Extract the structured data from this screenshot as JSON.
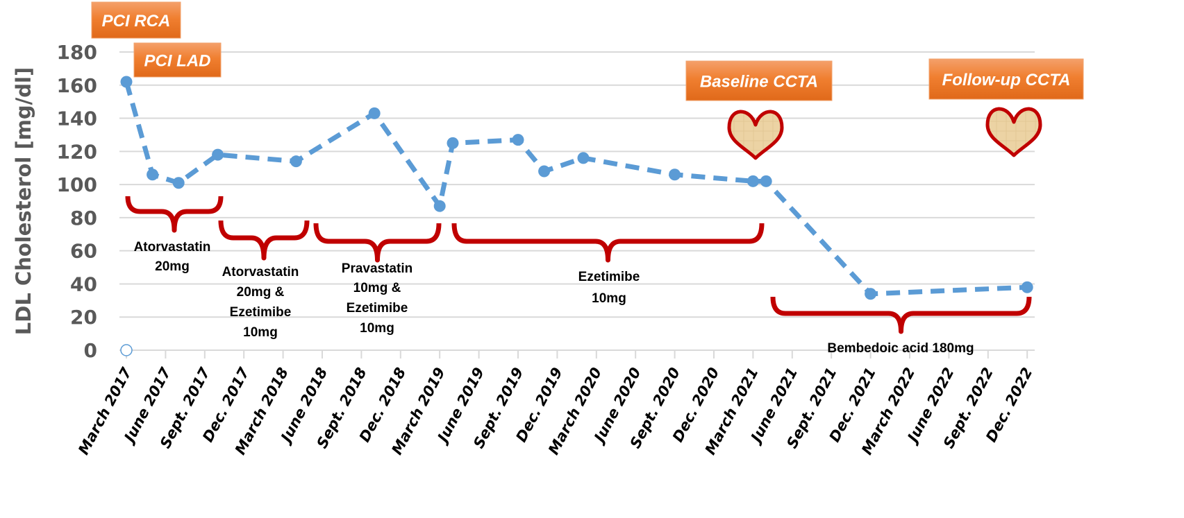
{
  "chart_data": {
    "type": "line",
    "title": "",
    "xlabel": "",
    "ylabel": "LDL Cholesterol [mg/dl]",
    "ylim": [
      0,
      180
    ],
    "yticks": [
      0,
      20,
      40,
      60,
      80,
      100,
      120,
      140,
      160,
      180
    ],
    "xtick_labels": [
      "March 2017",
      "June 2017",
      "Sept. 2017",
      "Dec. 2017",
      "March 2018",
      "June 2018",
      "Sept. 2018",
      "Dec. 2018",
      "March 2019",
      "June 2019",
      "Sept. 2019",
      "Dec. 2019",
      "March 2020",
      "June 2020",
      "Sept. 2020",
      "Dec. 2020",
      "March  2021",
      "June 2021",
      "Sept. 2021",
      "Dec. 2021",
      "March  2022",
      "June 2022",
      "Sept. 2022",
      "Dec. 2022"
    ],
    "grid": "horizontal",
    "series": [
      {
        "style": "dashed line with markers",
        "color": "#5b9bd5",
        "points": [
          {
            "x": "2017-03",
            "y": 162
          },
          {
            "x": "2017-05",
            "y": 106
          },
          {
            "x": "2017-07",
            "y": 101
          },
          {
            "x": "2017-10",
            "y": 118
          },
          {
            "x": "2018-04",
            "y": 114
          },
          {
            "x": "2018-10",
            "y": 143
          },
          {
            "x": "2019-03",
            "y": 87
          },
          {
            "x": "2019-04",
            "y": 125
          },
          {
            "x": "2019-09",
            "y": 127
          },
          {
            "x": "2019-11",
            "y": 108
          },
          {
            "x": "2020-02",
            "y": 116
          },
          {
            "x": "2020-09",
            "y": 106
          },
          {
            "x": "2021-03",
            "y": 102
          },
          {
            "x": "2021-04",
            "y": 102
          },
          {
            "x": "2021-12",
            "y": 34
          },
          {
            "x": "2022-12",
            "y": 38
          }
        ]
      }
    ],
    "events": [
      {
        "label": "PCI RCA"
      },
      {
        "label": "PCI LAD"
      },
      {
        "label": "Baseline CCTA",
        "icon": "heart-icon"
      },
      {
        "label": "Follow-up CCTA",
        "icon": "heart-icon"
      }
    ],
    "therapy_periods": [
      {
        "lines": [
          "Atorvastatin",
          "20mg"
        ]
      },
      {
        "lines": [
          "Atorvastatin",
          "20mg &",
          "Ezetimibe",
          "10mg"
        ]
      },
      {
        "lines": [
          "Pravastatin",
          "10mg &",
          "Ezetimibe",
          "10mg"
        ]
      },
      {
        "lines": [
          "Ezetimibe",
          "10mg"
        ]
      },
      {
        "lines": [
          "Bembedoic acid 180mg"
        ]
      }
    ]
  },
  "colors": {
    "line": "#5b9bd5",
    "brace": "#c00000",
    "event_box": "#ed7d31",
    "axis_text": "#595959",
    "grid": "#d9d9d9"
  }
}
